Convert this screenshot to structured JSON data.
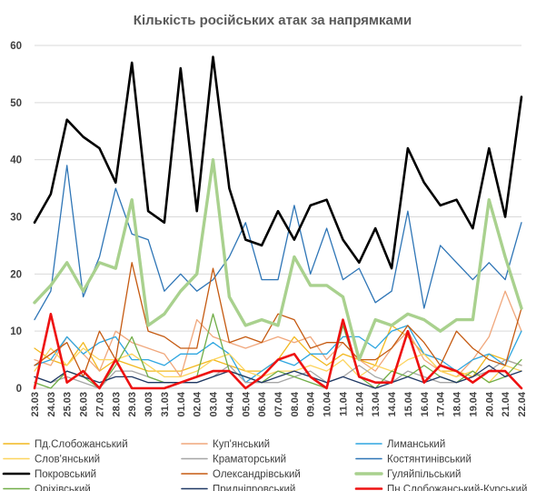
{
  "chart_data": {
    "type": "line",
    "title": "Кількість російських атак за напрямками",
    "xlabel": "",
    "ylabel": "",
    "ylim": [
      0,
      60
    ],
    "yticks": [
      0,
      10,
      20,
      30,
      40,
      50,
      60
    ],
    "grid": "horizontal",
    "legend": "bottom",
    "x": [
      "23.03",
      "24.03",
      "25.03",
      "26.03",
      "27.03",
      "28.03",
      "29.03",
      "30.03",
      "31.03",
      "01.04",
      "02.04",
      "03.04",
      "04.04",
      "05.04",
      "06.04",
      "07.04",
      "08.04",
      "09.04",
      "10.04",
      "11.04",
      "12.04",
      "13.04",
      "14.04",
      "15.04",
      "16.04",
      "17.04",
      "18.04",
      "19.04",
      "20.04",
      "21.04",
      "22.04"
    ],
    "series": [
      {
        "name": "Пд.Слобожанський",
        "color": "#f2b81f",
        "width": 1.3,
        "values": [
          7,
          5,
          4,
          8,
          3,
          5,
          4,
          3,
          3,
          3,
          4,
          5,
          4,
          3,
          3,
          5,
          9,
          6,
          4,
          6,
          5,
          4,
          11,
          9,
          6,
          3,
          3,
          2,
          6,
          5,
          4
        ]
      },
      {
        "name": "Куп'янський",
        "color": "#f0a77c",
        "width": 1.3,
        "values": [
          5,
          4,
          9,
          6,
          3,
          10,
          8,
          7,
          6,
          2,
          12,
          9,
          8,
          7,
          8,
          9,
          8,
          9,
          5,
          8,
          5,
          3,
          7,
          10,
          5,
          3,
          2,
          5,
          9,
          17,
          10
        ]
      },
      {
        "name": "Лиманський",
        "color": "#2ea6e0",
        "width": 1.3,
        "values": [
          4,
          5,
          9,
          6,
          8,
          9,
          5,
          5,
          4,
          6,
          6,
          8,
          6,
          1,
          3,
          5,
          4,
          6,
          6,
          9,
          9,
          7,
          10,
          11,
          6,
          5,
          3,
          5,
          6,
          4,
          10
        ]
      },
      {
        "name": "Слов'янський",
        "color": "#fcd45e",
        "width": 1.3,
        "values": [
          3,
          7,
          4,
          7,
          5,
          5,
          6,
          4,
          2,
          2,
          3,
          5,
          6,
          3,
          2,
          3,
          3,
          4,
          3,
          5,
          2,
          4,
          3,
          5,
          6,
          3,
          2,
          3,
          1,
          4,
          3
        ]
      },
      {
        "name": "Краматорський",
        "color": "#a6a6a6",
        "width": 1.3,
        "values": [
          2,
          1,
          2,
          1,
          0,
          3,
          3,
          2,
          1,
          1,
          1,
          2,
          4,
          1,
          1,
          1,
          2,
          3,
          1,
          2,
          4,
          2,
          1,
          3,
          2,
          1,
          1,
          2,
          3,
          5,
          4
        ]
      },
      {
        "name": "Костянтинівський",
        "color": "#2e75b6",
        "width": 1.3,
        "values": [
          12,
          17,
          39,
          16,
          23,
          35,
          27,
          26,
          17,
          20,
          17,
          19,
          23,
          29,
          19,
          19,
          32,
          20,
          28,
          19,
          21,
          15,
          17,
          31,
          14,
          25,
          22,
          19,
          22,
          19,
          29
        ]
      },
      {
        "name": "Покровський",
        "color": "#000000",
        "width": 2.6,
        "values": [
          29,
          34,
          47,
          44,
          42,
          36,
          57,
          31,
          29,
          56,
          31,
          58,
          35,
          26,
          25,
          31,
          26,
          32,
          33,
          26,
          22,
          28,
          21,
          42,
          36,
          32,
          33,
          28,
          42,
          30,
          51
        ]
      },
      {
        "name": "Олександрівський",
        "color": "#c55a11",
        "width": 1.3,
        "values": [
          4,
          6,
          8,
          2,
          10,
          5,
          22,
          10,
          9,
          7,
          7,
          21,
          8,
          9,
          8,
          13,
          12,
          7,
          8,
          8,
          5,
          5,
          7,
          11,
          8,
          4,
          10,
          7,
          5,
          4,
          14
        ]
      },
      {
        "name": "Гуляйпільський",
        "color": "#a9d18e",
        "width": 3.4,
        "values": [
          15,
          18,
          22,
          17,
          22,
          21,
          33,
          11,
          13,
          17,
          20,
          40,
          16,
          11,
          12,
          11,
          23,
          18,
          18,
          16,
          5,
          12,
          11,
          13,
          12,
          10,
          12,
          12,
          33,
          23,
          14
        ]
      },
      {
        "name": "Оріхівський",
        "color": "#70ad47",
        "width": 1.3,
        "values": [
          1,
          0,
          3,
          2,
          0,
          4,
          9,
          2,
          1,
          1,
          2,
          13,
          3,
          2,
          1,
          3,
          2,
          1,
          0,
          11,
          2,
          0,
          3,
          2,
          4,
          2,
          1,
          3,
          1,
          2,
          5
        ]
      },
      {
        "name": "Придніпровський",
        "color": "#1f3864",
        "width": 1.3,
        "values": [
          2,
          1,
          3,
          2,
          1,
          2,
          2,
          1,
          1,
          1,
          1,
          2,
          3,
          2,
          1,
          2,
          3,
          2,
          1,
          2,
          1,
          0,
          1,
          2,
          1,
          2,
          1,
          2,
          4,
          2,
          3
        ]
      },
      {
        "name": "Пн.Слобожанський-Курський",
        "color": "#ee1111",
        "width": 2.6,
        "values": [
          0,
          13,
          1,
          3,
          0,
          5,
          0,
          0,
          0,
          1,
          2,
          3,
          3,
          0,
          2,
          5,
          6,
          2,
          0,
          12,
          2,
          1,
          1,
          10,
          1,
          4,
          3,
          1,
          3,
          3,
          0
        ]
      }
    ]
  }
}
